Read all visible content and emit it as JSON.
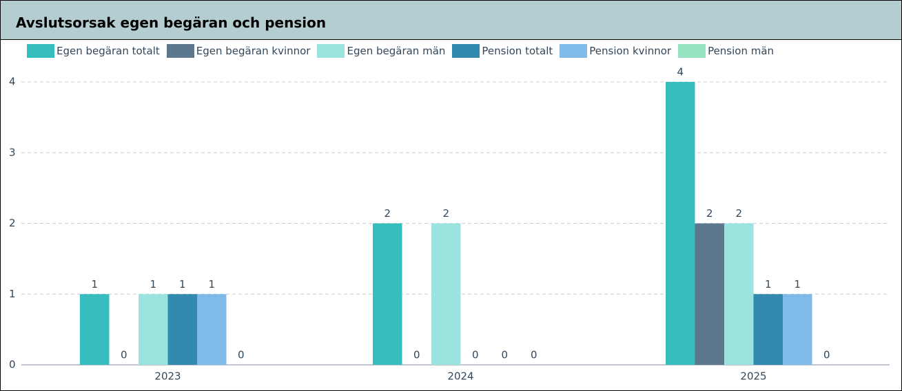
{
  "chart_data": {
    "type": "bar",
    "title": "Avslutsorsak egen begäran och pension",
    "categories": [
      "2023",
      "2024",
      "2025"
    ],
    "series": [
      {
        "name": "Egen begäran totalt",
        "color": "#36bdbd",
        "values": [
          1,
          2,
          4
        ]
      },
      {
        "name": "Egen begäran kvinnor",
        "color": "#5c778e",
        "values": [
          0,
          0,
          2
        ]
      },
      {
        "name": "Egen begäran män",
        "color": "#9ae3de",
        "values": [
          1,
          2,
          2
        ]
      },
      {
        "name": "Pension totalt",
        "color": "#328bae",
        "values": [
          1,
          0,
          1
        ]
      },
      {
        "name": "Pension kvinnor",
        "color": "#7fbae8",
        "values": [
          1,
          0,
          1
        ]
      },
      {
        "name": "Pension män",
        "color": "#97e3c1",
        "values": [
          0,
          0,
          0
        ]
      }
    ],
    "ylim": [
      0,
      4
    ],
    "yticks": [
      0,
      1,
      2,
      3,
      4
    ],
    "grid": true,
    "legend": "top"
  }
}
